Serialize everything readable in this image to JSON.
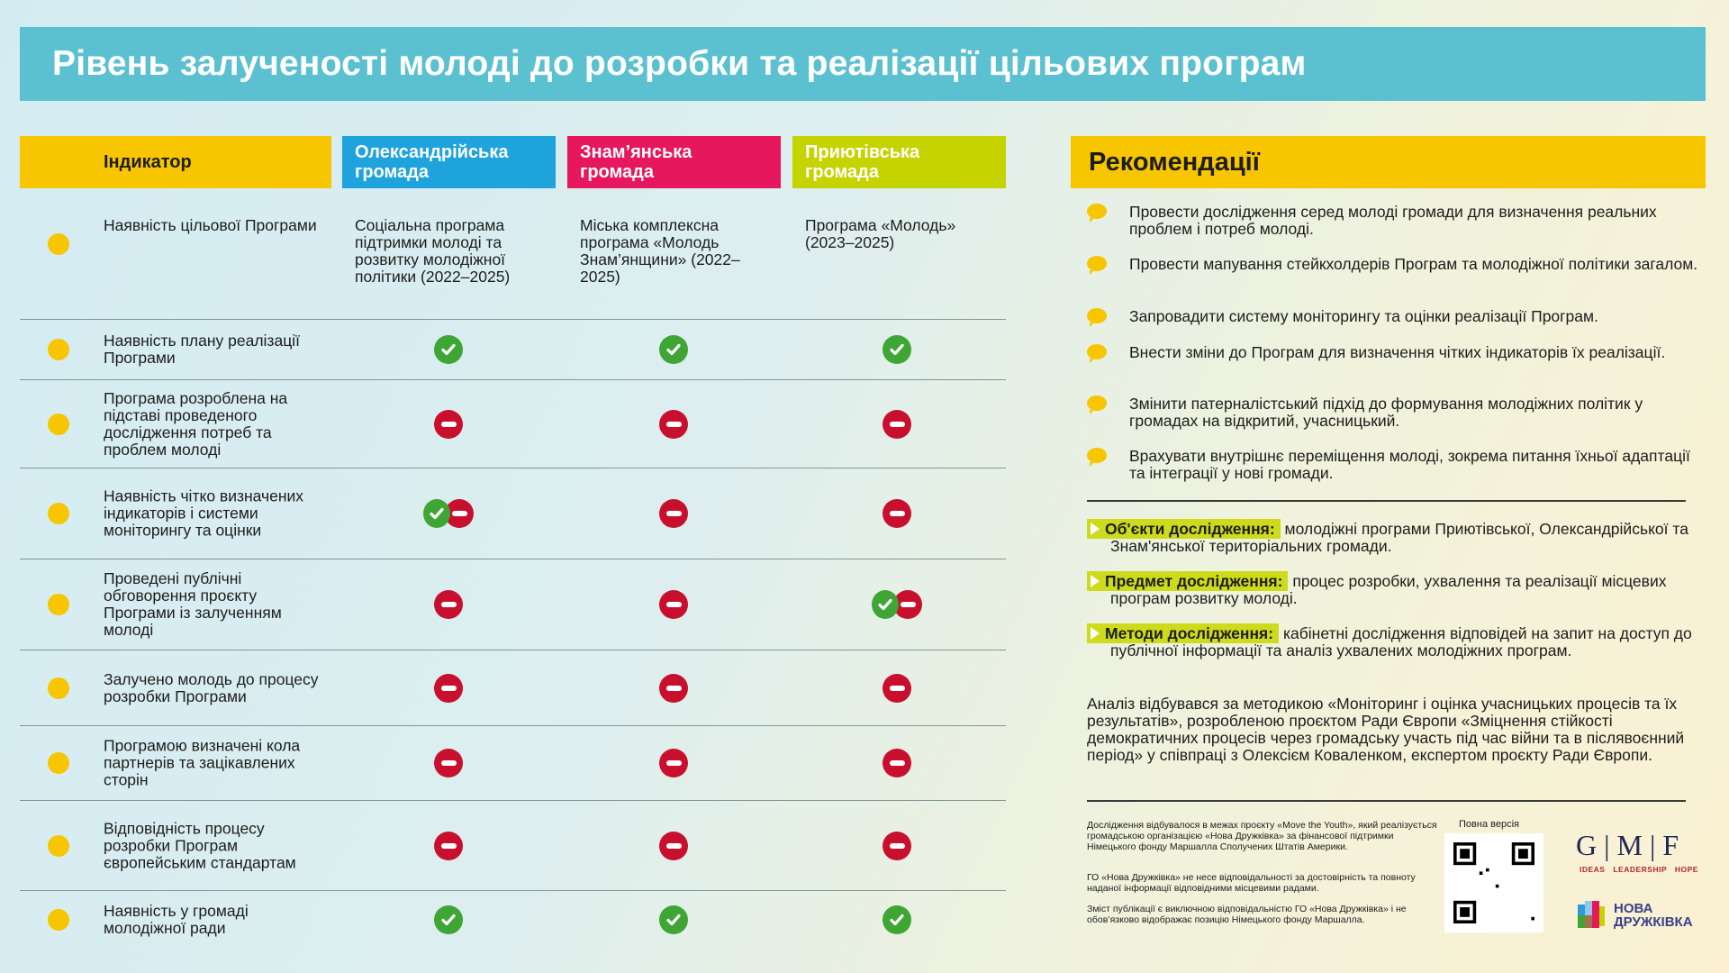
{
  "title": "Рівень залученості молоді до розробки та реалізації цільових програм",
  "table": {
    "headers": [
      "Індикатор",
      "Олександрійська громада",
      "Знам’янська громада",
      "Приютівська громада"
    ],
    "header_colors": [
      "#f7c600",
      "#1fa3dc",
      "#e6175c",
      "#c5d300"
    ],
    "rows": [
      {
        "indicator": "Наявність цільової Програми",
        "values": [
          "Соціальна програма підтримки молоді та розвитку молодіжної політики (2022–2025)",
          "Міська комплексна програма «Молодь Знам’янщини» (2022–2025)",
          "Програма «Молодь» (2023–2025)"
        ]
      },
      {
        "indicator": "Наявність плану реалізації Програми",
        "values": [
          "yes",
          "yes",
          "yes"
        ]
      },
      {
        "indicator": "Програма розроблена на підставі проведеного дослідження потреб та проблем молоді",
        "values": [
          "no",
          "no",
          "no"
        ]
      },
      {
        "indicator": "Наявність чітко визначених індикаторів і системи моніторингу та оцінки",
        "values": [
          "partial",
          "no",
          "no"
        ]
      },
      {
        "indicator": "Проведені публічні обговорення проєкту Програми із залученням молоді",
        "values": [
          "no",
          "no",
          "partial"
        ]
      },
      {
        "indicator": "Залучено молодь до процесу розробки Програми",
        "values": [
          "no",
          "no",
          "no"
        ]
      },
      {
        "indicator": "Програмою визначені кола  партнерів та зацікавлених сторін",
        "values": [
          "no",
          "no",
          "no"
        ]
      },
      {
        "indicator": "Відповідність процесу розробки Програм європейським стандартам",
        "values": [
          "no",
          "no",
          "no"
        ]
      },
      {
        "indicator": "Наявність у громаді молодіжної ради",
        "values": [
          "yes",
          "yes",
          "yes"
        ]
      }
    ]
  },
  "recommendations": {
    "title": "Рекомендації",
    "items": [
      "Провести дослідження серед молоді громади для визначення реальних проблем і потреб молоді.",
      "Провести мапування стейкхолдерів Програм та молодіжної політики загалом.",
      "Запровадити систему моніторингу та оцінки реалізації Програм.",
      "Внести зміни до Програм для визначення чітких індикаторів їх реалізації.",
      "Змінити патерналістський підхід до формування молодіжних політик у громадах на відкритий, учасницький.",
      "Врахувати внутрішнє переміщення молоді, зокрема питання їхньої адаптації та інтеграції у нові громади."
    ]
  },
  "research": [
    {
      "label": "Об'єкти дослідження:",
      "text": "молодіжні програми Приютівської, Олександрійської та Знам'янської територіальних громади."
    },
    {
      "label": "Предмет дослідження:",
      "text": "процес розробки, ухвалення та реалізації місцевих програм розвитку молоді."
    },
    {
      "label": "Методи дослідження:",
      "text": "кабінетні дослідження відповідей на запит на доступ до публічної інформації та аналіз ухвалених молодіжних програм."
    }
  ],
  "analysis": "Аналіз відбувався за методикою «Моніторинг і оцінка учасницьких процесів та їх результатів», розробленою проєктом Ради Європи «Зміцнення стійкості демократичних процесів через громадську участь під час війни та в післявоєнний період» у співпраці з Олексієм Коваленком, експертом проєкту Ради Європи.",
  "footer": {
    "notes": [
      "Дослідження відбувалося в межах проєкту «Move the Youth», який реалізується громадською організацією «Нова Дружківка» за фінансової підтримки Німецького фонду Маршалла Сполучених Штатів Америки.",
      "ГО «Нова Дружківка» не несе відповідальності за достовірність та повноту наданої інформації відповідними місцевими радами.",
      "Зміст публікації є виключною відповідальністю ГО «Нова Дружківка» і не обов’язково відображає позицію Німецького фонду Маршалла."
    ],
    "qr_label": "Повна версія",
    "gmf_logo": "G | M | F",
    "gmf_tagline": "IDEAS LEADERSHIP HOPE",
    "nd_logo": "НОВА ДРУЖКІВКА"
  }
}
